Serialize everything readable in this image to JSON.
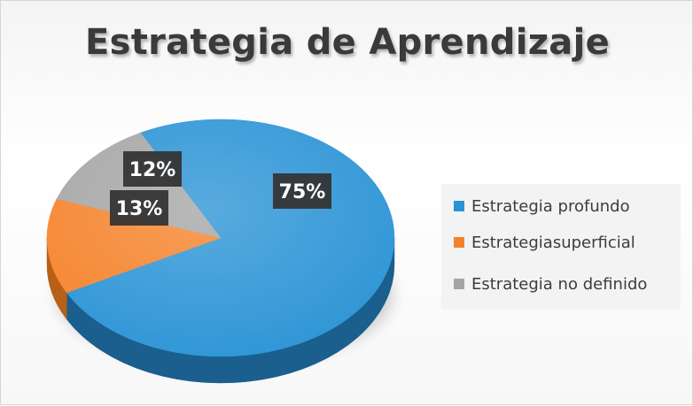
{
  "colors": {
    "background": "#ffffff",
    "title_color": "#3a3a3a",
    "label_box": "#333333"
  },
  "chart_data": {
    "type": "pie",
    "title": "Estrategia de Aprendizaje",
    "style": "3d",
    "legend_position": "right",
    "slices": [
      {
        "name": "Estrategia profundo",
        "value": 75,
        "label": "75%",
        "color": "#2a93d5",
        "side_color": "#1a5f8d"
      },
      {
        "name": "Estrategiasuperficial",
        "value": 13,
        "label": "13%",
        "color": "#f5822a",
        "side_color": "#b85f18"
      },
      {
        "name": "Estrategia no definido",
        "value": 12,
        "label": "12%",
        "color": "#a5a5a5",
        "side_color": "#777777"
      }
    ]
  }
}
